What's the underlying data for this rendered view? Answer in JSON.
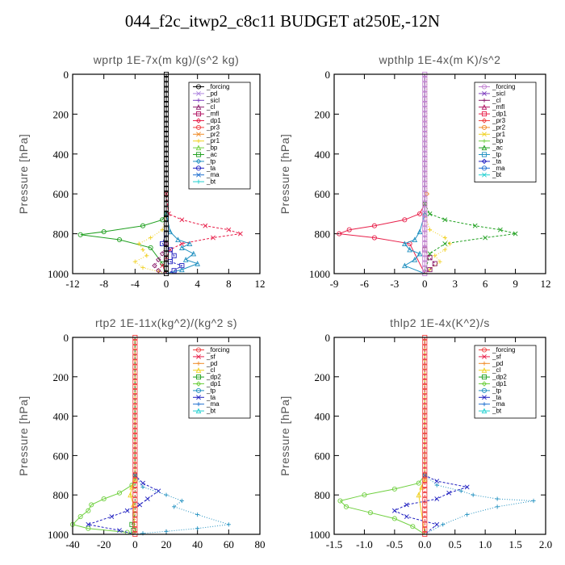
{
  "title": "044_f2c_itwp2_c8c11  BUDGET at250E,-12N",
  "chart_data": [
    {
      "type": "line",
      "title": "wprtp  1E-7x(m kg)/(s^2 kg)",
      "ylabel": "Pressure [hPa]",
      "xlim": [
        -12,
        12
      ],
      "ylim": [
        1000,
        0
      ],
      "xticks": [
        "-12",
        "-8",
        "-4",
        "0",
        "4",
        "8",
        "12"
      ],
      "xtick_values": [
        -12,
        -8,
        -4,
        0,
        4,
        8,
        12
      ],
      "yticks": [
        "0",
        "200",
        "400",
        "600",
        "800",
        "1000"
      ],
      "ytick_values": [
        0,
        200,
        400,
        600,
        800,
        1000
      ],
      "legend_position": "top-right",
      "legend": [
        {
          "name": "_forcing",
          "color": "#000000"
        },
        {
          "name": "_pd",
          "color": "#b088e0"
        },
        {
          "name": "_sicl",
          "color": "#7f3fbf"
        },
        {
          "name": "_cl",
          "color": "#8b1a6b"
        },
        {
          "name": "_mfl",
          "color": "#b01060"
        },
        {
          "name": "_dp1",
          "color": "#e8204a"
        },
        {
          "name": "_pr3",
          "color": "#f04040"
        },
        {
          "name": "_pr2",
          "color": "#f08c28"
        },
        {
          "name": "_pr1",
          "color": "#f0d020"
        },
        {
          "name": "_bp",
          "color": "#70d040"
        },
        {
          "name": "_ac",
          "color": "#20a020"
        },
        {
          "name": "_tp",
          "color": "#2090c0"
        },
        {
          "name": "_ta",
          "color": "#2020c0"
        },
        {
          "name": "_ma",
          "color": "#2070d0"
        },
        {
          "name": "_bt",
          "color": "#20d0d0"
        }
      ],
      "series": [
        {
          "color": "#20a020",
          "x": [
            0,
            0,
            0,
            -0.5,
            -3,
            -8,
            -11,
            -6,
            -2,
            -0.5,
            0
          ],
          "y": [
            0,
            600,
            700,
            730,
            760,
            790,
            805,
            830,
            870,
            950,
            1000
          ]
        },
        {
          "color": "#e8204a",
          "x": [
            0,
            0,
            0.3,
            2,
            5,
            8,
            9.5,
            6,
            2,
            0.5,
            0,
            -0.5,
            0
          ],
          "y": [
            0,
            600,
            700,
            730,
            760,
            780,
            800,
            820,
            850,
            880,
            920,
            960,
            1000
          ]
        },
        {
          "color": "#f0d020",
          "x": [
            0,
            0,
            -0.5,
            -2,
            -3.5,
            -3,
            -2.5,
            -4,
            -3,
            -1,
            0
          ],
          "y": [
            0,
            700,
            780,
            820,
            850,
            880,
            910,
            940,
            970,
            990,
            1000
          ]
        },
        {
          "color": "#2090c0",
          "x": [
            0,
            0,
            0.5,
            1.5,
            3,
            2,
            3.5,
            2.5,
            4,
            2,
            0
          ],
          "y": [
            0,
            700,
            790,
            830,
            850,
            870,
            900,
            930,
            950,
            980,
            1000
          ]
        },
        {
          "color": "#2020c0",
          "x": [
            0,
            0,
            -0.5,
            0.5,
            1,
            0.5,
            2,
            1,
            0
          ],
          "y": [
            0,
            800,
            850,
            880,
            910,
            940,
            960,
            985,
            1000
          ]
        },
        {
          "color": "#8b1a6b",
          "x": [
            0,
            0,
            -0.5,
            -1,
            -1.5,
            -1,
            0
          ],
          "y": [
            0,
            850,
            900,
            930,
            960,
            985,
            1000
          ]
        },
        {
          "color": "#000000",
          "x": [
            0,
            0
          ],
          "y": [
            0,
            1000
          ]
        }
      ]
    },
    {
      "type": "line",
      "title": "wpthlp  1E-4x(m K)/s^2",
      "ylabel": "Pressure [hPa]",
      "xlim": [
        -9,
        12
      ],
      "ylim": [
        1000,
        0
      ],
      "xticks": [
        "-9",
        "-6",
        "-3",
        "0",
        "3",
        "6",
        "9",
        "12"
      ],
      "xtick_values": [
        -9,
        -6,
        -3,
        0,
        3,
        6,
        9,
        12
      ],
      "yticks": [
        "0",
        "200",
        "400",
        "600",
        "800",
        "1000"
      ],
      "ytick_values": [
        0,
        200,
        400,
        600,
        800,
        1000
      ],
      "legend_position": "top-right",
      "legend": [
        {
          "name": "_forcing",
          "color": "#c080d0"
        },
        {
          "name": "_sicl",
          "color": "#7f3fbf"
        },
        {
          "name": "_cl",
          "color": "#8b1a6b"
        },
        {
          "name": "_mfl",
          "color": "#b01060"
        },
        {
          "name": "_dp1",
          "color": "#e8204a"
        },
        {
          "name": "_pr3",
          "color": "#f04040"
        },
        {
          "name": "_pr2",
          "color": "#f08c28"
        },
        {
          "name": "_pr1",
          "color": "#f0d020"
        },
        {
          "name": "_bp",
          "color": "#70d040"
        },
        {
          "name": "_ac",
          "color": "#20a020"
        },
        {
          "name": "_tp",
          "color": "#2090c0"
        },
        {
          "name": "_ta",
          "color": "#2020c0"
        },
        {
          "name": "_ma",
          "color": "#2070d0"
        },
        {
          "name": "_bt",
          "color": "#20d0d0"
        }
      ],
      "series": [
        {
          "color": "#e8204a",
          "x": [
            0,
            0,
            -0.5,
            -2,
            -5,
            -7.5,
            -8.5,
            -5,
            -1.5,
            0
          ],
          "y": [
            0,
            650,
            700,
            730,
            760,
            780,
            800,
            820,
            850,
            1000
          ]
        },
        {
          "color": "#20a020",
          "x": [
            0,
            0,
            0.5,
            2,
            5,
            7.5,
            9,
            6,
            2,
            0.5,
            0
          ],
          "y": [
            0,
            650,
            700,
            730,
            760,
            780,
            800,
            820,
            850,
            900,
            1000
          ]
        },
        {
          "color": "#f0d020",
          "x": [
            0,
            0,
            0.5,
            2,
            2.5,
            2,
            1,
            1.5,
            0.5,
            0
          ],
          "y": [
            0,
            700,
            780,
            820,
            850,
            880,
            910,
            940,
            980,
            1000
          ]
        },
        {
          "color": "#2090c0",
          "x": [
            0,
            0,
            -0.5,
            -1,
            -2,
            -1.5,
            -0.5,
            -1,
            -2,
            0
          ],
          "y": [
            0,
            700,
            790,
            830,
            850,
            880,
            900,
            930,
            960,
            1000
          ]
        },
        {
          "color": "#8b1a6b",
          "x": [
            0,
            0,
            0.5,
            1,
            0.5,
            0
          ],
          "y": [
            0,
            880,
            920,
            950,
            980,
            1000
          ]
        },
        {
          "color": "#f08c28",
          "x": [
            0.2,
            0.2,
            0.2
          ],
          "y": [
            0,
            600,
            1000
          ]
        },
        {
          "color": "#c080d0",
          "x": [
            0,
            0
          ],
          "y": [
            0,
            1000
          ]
        }
      ]
    },
    {
      "type": "line",
      "title": "rtp2  1E-11x(kg^2)/(kg^2 s)",
      "ylabel": "Pressure [hPa]",
      "xlim": [
        -40,
        80
      ],
      "ylim": [
        1000,
        0
      ],
      "xticks": [
        "-40",
        "-20",
        "0",
        "20",
        "40",
        "60",
        "80"
      ],
      "xtick_values": [
        -40,
        -20,
        0,
        20,
        40,
        60,
        80
      ],
      "yticks": [
        "0",
        "200",
        "400",
        "600",
        "800",
        "1000"
      ],
      "ytick_values": [
        0,
        200,
        400,
        600,
        800,
        1000
      ],
      "legend_position": "top-right",
      "legend": [
        {
          "name": "_forcing",
          "color": "#f04040"
        },
        {
          "name": "_sf",
          "color": "#e8204a"
        },
        {
          "name": "_pd",
          "color": "#f08c28"
        },
        {
          "name": "_cl",
          "color": "#f0d020"
        },
        {
          "name": "_dp2",
          "color": "#20a020"
        },
        {
          "name": "_dp1",
          "color": "#70d040"
        },
        {
          "name": "_tp",
          "color": "#2090c0"
        },
        {
          "name": "_ta",
          "color": "#2020c0"
        },
        {
          "name": "_ma",
          "color": "#2070d0"
        },
        {
          "name": "_bt",
          "color": "#20d0d0"
        }
      ],
      "series": [
        {
          "color": "#70d040",
          "x": [
            0,
            0,
            -2,
            -10,
            -20,
            -28,
            -30,
            -35,
            -40,
            -30,
            -5,
            0
          ],
          "y": [
            0,
            700,
            750,
            790,
            820,
            850,
            880,
            910,
            950,
            970,
            990,
            1000
          ]
        },
        {
          "color": "#2020c0",
          "x": [
            0,
            0,
            5,
            15,
            8,
            3,
            -5,
            -15,
            -30,
            -10,
            0
          ],
          "y": [
            0,
            700,
            740,
            780,
            820,
            850,
            880,
            910,
            950,
            980,
            1000
          ]
        },
        {
          "color": "#2090c0",
          "x": [
            0,
            0,
            5,
            20,
            30,
            25,
            40,
            60,
            40,
            20,
            5,
            0
          ],
          "y": [
            0,
            700,
            760,
            800,
            830,
            860,
            900,
            950,
            970,
            985,
            995,
            1000
          ]
        },
        {
          "color": "#f0d020",
          "x": [
            0,
            0,
            -2,
            -3,
            -1,
            0
          ],
          "y": [
            0,
            720,
            760,
            800,
            850,
            1000
          ]
        },
        {
          "color": "#20a020",
          "x": [
            0,
            0,
            -2,
            -1,
            0
          ],
          "y": [
            0,
            900,
            950,
            980,
            1000
          ]
        },
        {
          "color": "#f04040",
          "x": [
            0,
            0
          ],
          "y": [
            0,
            1000
          ]
        }
      ]
    },
    {
      "type": "line",
      "title": "thlp2  1E-4x(K^2)/s",
      "ylabel": "Pressure [hPa]",
      "xlim": [
        -1.5,
        2.0
      ],
      "ylim": [
        1000,
        0
      ],
      "xticks": [
        "-1.5",
        "-1.0",
        "-0.5",
        "0.0",
        "0.5",
        "1.0",
        "1.5",
        "2.0"
      ],
      "xtick_values": [
        -1.5,
        -1.0,
        -0.5,
        0.0,
        0.5,
        1.0,
        1.5,
        2.0
      ],
      "yticks": [
        "0",
        "200",
        "400",
        "600",
        "800",
        "1000"
      ],
      "ytick_values": [
        0,
        200,
        400,
        600,
        800,
        1000
      ],
      "legend_position": "top-right",
      "legend": [
        {
          "name": "_forcing",
          "color": "#f04040"
        },
        {
          "name": "_sf",
          "color": "#e8204a"
        },
        {
          "name": "_pd",
          "color": "#f08c28"
        },
        {
          "name": "_cl",
          "color": "#f0d020"
        },
        {
          "name": "_dp2",
          "color": "#20a020"
        },
        {
          "name": "_dp1",
          "color": "#70d040"
        },
        {
          "name": "_tp",
          "color": "#2090c0"
        },
        {
          "name": "_ta",
          "color": "#2020c0"
        },
        {
          "name": "_ma",
          "color": "#2070d0"
        },
        {
          "name": "_bt",
          "color": "#20d0d0"
        }
      ],
      "series": [
        {
          "color": "#70d040",
          "x": [
            0,
            0,
            -0.1,
            -0.5,
            -1.0,
            -1.4,
            -1.3,
            -0.9,
            -0.5,
            -0.2,
            0
          ],
          "y": [
            0,
            700,
            740,
            770,
            800,
            830,
            860,
            890,
            920,
            960,
            1000
          ]
        },
        {
          "color": "#2020c0",
          "x": [
            0,
            0,
            0.2,
            0.7,
            0.4,
            0.2,
            -0.3,
            -0.5,
            -0.3,
            0.2,
            0
          ],
          "y": [
            0,
            700,
            730,
            760,
            790,
            820,
            850,
            880,
            910,
            950,
            1000
          ]
        },
        {
          "color": "#2090c0",
          "x": [
            0,
            0,
            0.2,
            0.6,
            0.8,
            1.2,
            1.8,
            1.2,
            0.7,
            0.3,
            0
          ],
          "y": [
            0,
            700,
            750,
            780,
            800,
            820,
            830,
            860,
            900,
            950,
            1000
          ]
        },
        {
          "color": "#f0d020",
          "x": [
            0,
            0,
            -0.05,
            -0.1,
            0
          ],
          "y": [
            0,
            720,
            760,
            800,
            1000
          ]
        },
        {
          "color": "#f04040",
          "x": [
            0,
            0
          ],
          "y": [
            0,
            1000
          ]
        }
      ]
    }
  ]
}
